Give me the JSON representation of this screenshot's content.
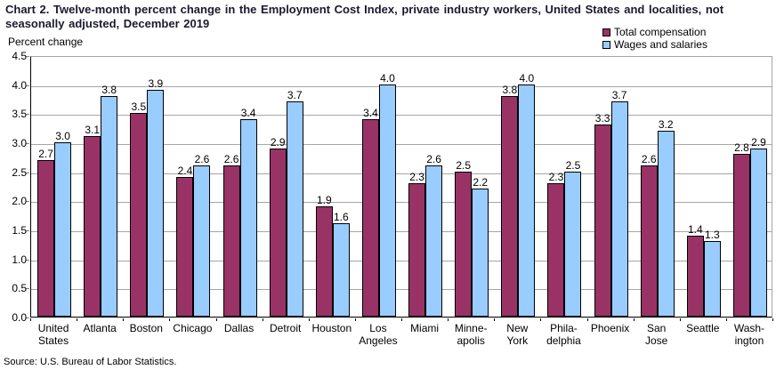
{
  "title": "Chart 2. Twelve-month percent change in the Employment Cost Index, private industry workers, United States and localities, not\nseasonally adjusted, December 2019",
  "y_axis_label": "Percent change",
  "source": "Source: U.S. Bureau of Labor Statistics.",
  "colors": {
    "total_compensation": "#993366",
    "wages_and_salaries": "#99CCFF",
    "gridline": "#A6A6A6",
    "axis": "#000000",
    "title_text": "#1A1A2E"
  },
  "chart_data": {
    "type": "bar",
    "title": "Chart 2. Twelve-month percent change in the Employment Cost Index, private industry workers, United States and localities, not seasonally adjusted, December 2019",
    "xlabel": "",
    "ylabel": "Percent change",
    "categories": [
      "United States",
      "Atlanta",
      "Boston",
      "Chicago",
      "Dallas",
      "Detroit",
      "Houston",
      "Los Angeles",
      "Miami",
      "Minneapolis",
      "New York",
      "Philadelphia",
      "Phoenix",
      "San Jose",
      "Seattle",
      "Washington"
    ],
    "categories_display": [
      "United\nStates",
      "Atlanta",
      "Boston",
      "Chicago",
      "Dallas",
      "Detroit",
      "Houston",
      "Los\nAngeles",
      "Miami",
      "Minne-\napolis",
      "New\nYork",
      "Phila-\ndelphia",
      "Phoenix",
      "San\nJose",
      "Seattle",
      "Wash-\nington"
    ],
    "series": [
      {
        "name": "Total compensation",
        "color": "#993366",
        "values": [
          2.7,
          3.1,
          3.5,
          2.4,
          2.6,
          2.9,
          1.9,
          3.4,
          2.3,
          2.5,
          3.8,
          2.3,
          3.3,
          2.6,
          1.4,
          2.8
        ]
      },
      {
        "name": "Wages and salaries",
        "color": "#99CCFF",
        "values": [
          3.0,
          3.8,
          3.9,
          2.6,
          3.4,
          3.7,
          1.6,
          4.0,
          2.6,
          2.2,
          4.0,
          2.5,
          3.7,
          3.2,
          1.3,
          2.9
        ]
      }
    ],
    "ylim": [
      0,
      4.5
    ],
    "ytick_step": 0.5,
    "grid": true,
    "legend_position": "top-right",
    "bar_value_labels": true
  }
}
